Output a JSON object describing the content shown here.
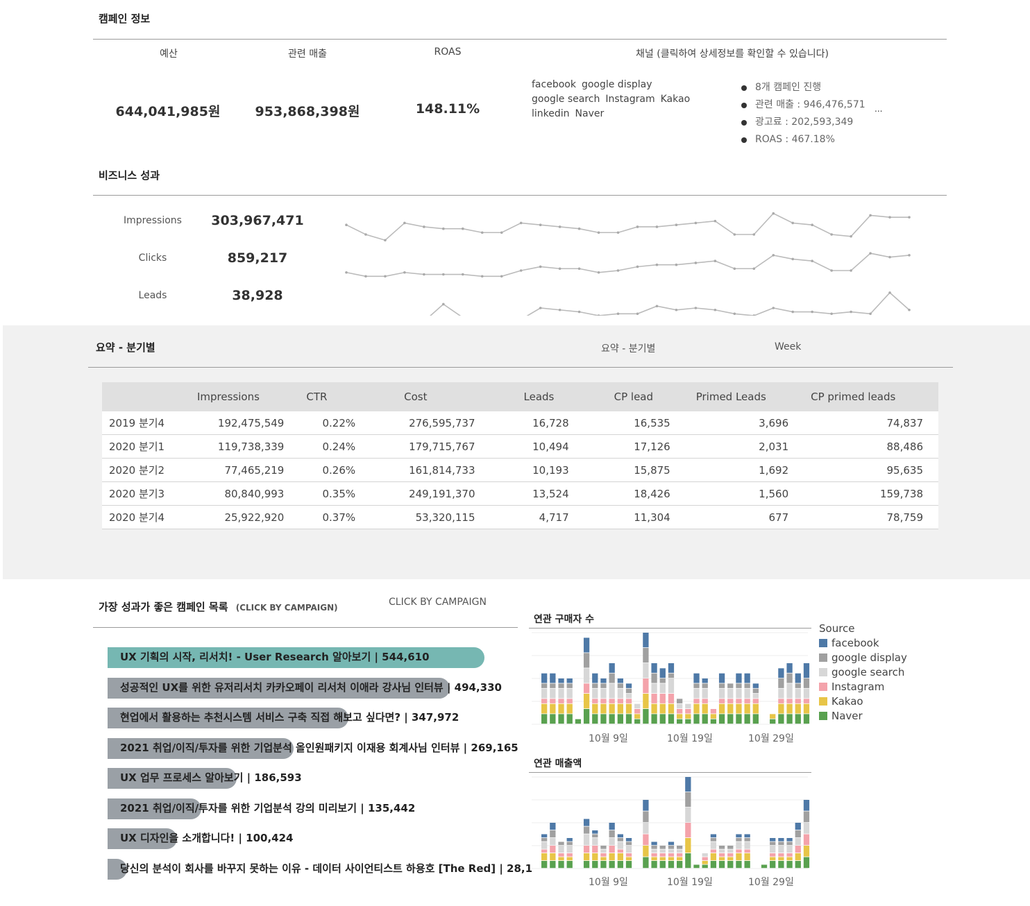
{
  "campaign_info": {
    "title": "캠페인 정보",
    "headers": [
      "예산",
      "관련 매출",
      "ROAS",
      "채널 (클릭하여 상세정보를 확인할 수 있습니다)"
    ],
    "budget": "644,041,985원",
    "revenue": "953,868,398원",
    "roas": "148.11%",
    "channels": [
      "facebook",
      "google display",
      "google search",
      "Instagram",
      "Kakao",
      "linkedin",
      "Naver"
    ],
    "details": [
      "8개 캠페인 진행",
      "관련 매출 : 946,476,571",
      "광고료 : 202,593,349",
      "ROAS : 467.18%"
    ],
    "more": "..."
  },
  "business": {
    "title": "비즈니스 성과",
    "metrics": [
      {
        "label": "Impressions",
        "value": "303,967,471"
      },
      {
        "label": "Clicks",
        "value": "859,217"
      },
      {
        "label": "Leads",
        "value": "38,928"
      }
    ],
    "sparklines": {
      "impressions": [
        19,
        14,
        11,
        20,
        18,
        17,
        17,
        15,
        15,
        20,
        19,
        18,
        17,
        15,
        15,
        18,
        18,
        19,
        20,
        21,
        14,
        14,
        25,
        20,
        19,
        14,
        13,
        24,
        23,
        23
      ],
      "clicks": [
        13,
        11,
        11,
        13,
        12,
        12,
        12,
        11,
        11,
        14,
        16,
        15,
        15,
        13,
        14,
        16,
        17,
        17,
        18,
        19,
        15,
        15,
        22,
        20,
        19,
        14,
        14,
        23,
        21,
        22
      ],
      "leads": [
        8,
        7,
        9,
        7,
        7,
        16,
        9,
        9,
        9,
        8,
        14,
        13,
        12,
        10,
        11,
        11,
        15,
        13,
        14,
        13,
        11,
        10,
        14,
        12,
        12,
        11,
        12,
        11,
        22,
        13
      ]
    },
    "spark_color": "#bbbbbb"
  },
  "summary": {
    "title": "요약 - 분기별",
    "filter_label": "요약 - 분기별",
    "week_label": "Week",
    "columns": [
      "",
      "Impressions",
      "CTR",
      "Cost",
      "Leads",
      "CP lead",
      "Primed Leads",
      "CP primed leads"
    ],
    "rows": [
      [
        "2019 분기4",
        "192,475,549",
        "0.22%",
        "276,595,737",
        "16,728",
        "16,535",
        "3,696",
        "74,837"
      ],
      [
        "2020 분기1",
        "119,738,339",
        "0.24%",
        "179,715,767",
        "10,494",
        "17,126",
        "2,031",
        "88,486"
      ],
      [
        "2020 분기2",
        "77,465,219",
        "0.26%",
        "161,814,733",
        "10,193",
        "15,875",
        "1,692",
        "95,635"
      ],
      [
        "2020 분기3",
        "80,840,993",
        "0.35%",
        "249,191,370",
        "13,524",
        "18,426",
        "1,560",
        "159,738"
      ],
      [
        "2020 분기4",
        "25,922,920",
        "0.37%",
        "53,320,115",
        "4,717",
        "11,304",
        "677",
        "78,759"
      ]
    ]
  },
  "top_campaigns": {
    "title": "가장 성과가 좋은 캠페인 목록",
    "title_sub": "(CLICK BY CAMPAIGN)",
    "filter_label": "CLICK BY CAMPAIGN",
    "items": [
      {
        "label": "UX 기획의 시작, 리서치! - User Research 알아보기 | 544,610",
        "value": 544610
      },
      {
        "label": "성공적인 UX를 위한 유저리서치 카카오페이 리서처 이애라 강사님 인터뷰 | 494,330",
        "value": 494330
      },
      {
        "label": "현업에서 활용하는 추천시스템 서비스 구축 직접 해보고 싶다면? | 347,972",
        "value": 347972
      },
      {
        "label": "2021 취업/이직/투자를 위한 기업분석 올인원패키지 이재용 회계사님 인터뷰 | 269,165",
        "value": 269165
      },
      {
        "label": "UX 업무 프로세스 알아보기 | 186,593",
        "value": 186593
      },
      {
        "label": "2021 취업/이직/투자를 위한 기업분석 강의 미리보기 | 135,442",
        "value": 135442
      },
      {
        "label": "UX 디자인을 소개합니다! | 100,424",
        "value": 100424
      },
      {
        "label": "당신의 분석이 회사를 바꾸지 못하는 이유 - 데이터 사이언티스트 하용호 [The Red] | 28,1",
        "value": 28100
      }
    ],
    "highlight_color": "#76b7b2",
    "bar_color": "#9aa0a6"
  },
  "chart_data": [
    {
      "type": "bar",
      "stacked": true,
      "title": "연관 구매자 수",
      "x_ticks": [
        "10월 9일",
        "10월 19일",
        "10월 29일"
      ],
      "grid": true,
      "series": [
        {
          "name": "facebook",
          "color": "#4e79a7",
          "values": [
            2,
            2,
            1,
            1,
            0,
            3,
            2,
            1,
            2,
            1,
            1,
            0,
            3,
            2,
            2,
            2,
            0,
            0,
            2,
            1,
            0,
            2,
            0,
            2,
            2,
            1,
            0,
            0,
            2,
            2,
            2,
            3
          ]
        },
        {
          "name": "google display",
          "color": "#a0a0a0",
          "values": [
            1,
            1,
            1,
            1,
            0,
            3,
            1,
            1,
            2,
            1,
            1,
            0,
            3,
            2,
            1,
            1,
            1,
            0,
            1,
            1,
            0,
            1,
            1,
            1,
            1,
            1,
            0,
            0,
            2,
            2,
            1,
            2
          ]
        },
        {
          "name": "google search",
          "color": "#d7d7d7",
          "values": [
            2,
            2,
            2,
            2,
            0,
            3,
            2,
            2,
            3,
            2,
            1,
            1,
            3,
            2,
            2,
            3,
            1,
            1,
            2,
            2,
            0,
            2,
            2,
            2,
            2,
            1,
            0,
            0,
            2,
            3,
            2,
            2
          ]
        },
        {
          "name": "Instagram",
          "color": "#f4a3ab",
          "values": [
            1,
            1,
            1,
            1,
            0,
            2,
            1,
            1,
            1,
            1,
            1,
            1,
            3,
            2,
            2,
            2,
            1,
            1,
            1,
            1,
            1,
            1,
            1,
            1,
            1,
            1,
            0,
            0,
            1,
            1,
            1,
            1
          ]
        },
        {
          "name": "Kakao",
          "color": "#e8c547",
          "values": [
            2,
            2,
            2,
            2,
            0,
            3,
            2,
            2,
            2,
            2,
            2,
            1,
            3,
            2,
            2,
            2,
            1,
            1,
            2,
            2,
            1,
            2,
            2,
            2,
            2,
            2,
            0,
            1,
            2,
            2,
            2,
            2
          ]
        },
        {
          "name": "Naver",
          "color": "#59a14f",
          "values": [
            2,
            2,
            2,
            2,
            1,
            3,
            2,
            2,
            2,
            2,
            2,
            1,
            3,
            2,
            2,
            2,
            1,
            1,
            2,
            2,
            1,
            2,
            2,
            2,
            2,
            2,
            0,
            1,
            2,
            2,
            2,
            2
          ]
        }
      ]
    },
    {
      "type": "bar",
      "stacked": true,
      "title": "연관 매출액",
      "x_ticks": [
        "10월 9일",
        "10월 19일",
        "10월 29일"
      ],
      "grid": true,
      "series": [
        {
          "name": "facebook",
          "color": "#4e79a7",
          "values": [
            1,
            2,
            0,
            1,
            0,
            2,
            1,
            0,
            2,
            1,
            1,
            0,
            3,
            1,
            0,
            1,
            0,
            4,
            0,
            0,
            1,
            0,
            0,
            1,
            1,
            0,
            0,
            1,
            1,
            1,
            2,
            3
          ]
        },
        {
          "name": "google display",
          "color": "#a0a0a0",
          "values": [
            1,
            2,
            1,
            1,
            0,
            2,
            1,
            1,
            2,
            1,
            1,
            0,
            3,
            1,
            1,
            1,
            1,
            4,
            0,
            0,
            1,
            1,
            1,
            1,
            1,
            0,
            0,
            1,
            1,
            1,
            2,
            3
          ]
        },
        {
          "name": "google search",
          "color": "#d7d7d7",
          "values": [
            2,
            2,
            2,
            2,
            0,
            3,
            2,
            1,
            2,
            2,
            2,
            0,
            3,
            1,
            1,
            1,
            1,
            4,
            0,
            1,
            2,
            1,
            1,
            2,
            2,
            0,
            0,
            2,
            2,
            2,
            2,
            3
          ]
        },
        {
          "name": "Instagram",
          "color": "#f4a3ab",
          "values": [
            1,
            2,
            1,
            1,
            0,
            2,
            2,
            1,
            2,
            1,
            1,
            0,
            3,
            1,
            1,
            1,
            1,
            4,
            0,
            1,
            1,
            1,
            1,
            1,
            1,
            0,
            0,
            1,
            1,
            1,
            2,
            3
          ]
        },
        {
          "name": "Kakao",
          "color": "#e8c547",
          "values": [
            2,
            2,
            1,
            1,
            0,
            2,
            2,
            1,
            2,
            2,
            1,
            0,
            3,
            1,
            1,
            1,
            1,
            4,
            0,
            1,
            2,
            1,
            1,
            2,
            2,
            0,
            0,
            1,
            1,
            1,
            2,
            3
          ]
        },
        {
          "name": "Naver",
          "color": "#59a14f",
          "values": [
            2,
            2,
            2,
            2,
            0,
            2,
            2,
            2,
            2,
            2,
            2,
            0,
            3,
            2,
            2,
            2,
            2,
            4,
            1,
            1,
            2,
            2,
            2,
            2,
            2,
            0,
            1,
            2,
            2,
            2,
            2,
            3
          ]
        }
      ]
    }
  ],
  "legend": {
    "title": "Source",
    "items": [
      {
        "name": "facebook",
        "color": "#4e79a7"
      },
      {
        "name": "google display",
        "color": "#a0a0a0"
      },
      {
        "name": "google search",
        "color": "#d7d7d7"
      },
      {
        "name": "Instagram",
        "color": "#f4a3ab"
      },
      {
        "name": "Kakao",
        "color": "#e8c547"
      },
      {
        "name": "Naver",
        "color": "#59a14f"
      }
    ]
  }
}
